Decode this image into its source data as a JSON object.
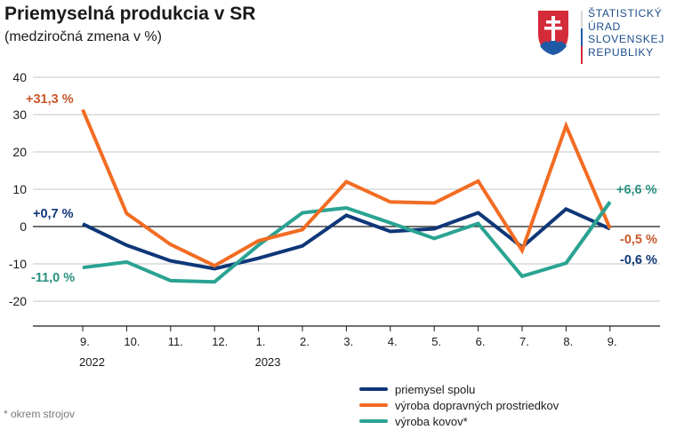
{
  "header": {
    "title": "Priemyselná produkcia v SR",
    "subtitle": "(medziročná zmena v %)"
  },
  "logo": {
    "lines": [
      "ŠTATISTICKÝ",
      "ÚRAD",
      "SLOVENSKEJ",
      "REPUBLIKY"
    ]
  },
  "footnote": "* okrem strojov",
  "chart_data": {
    "type": "line",
    "title": "Priemyselná produkcia v SR",
    "subtitle": "(medziročná zmena v %)",
    "xlabel": "",
    "ylabel": "",
    "ylim": [
      -27,
      40
    ],
    "yticks": [
      "40",
      "30",
      "20",
      "10",
      "0",
      "-10",
      "-20"
    ],
    "ytick_values": [
      40,
      30,
      20,
      10,
      0,
      -10,
      -20
    ],
    "grid": true,
    "legend_position": "bottom-center",
    "categories": [
      "9.",
      "10.",
      "11.",
      "12.",
      "1.",
      "2.",
      "3.",
      "4.",
      "5.",
      "6.",
      "7.",
      "8.",
      "9."
    ],
    "year_labels": [
      {
        "index": 0,
        "label": "2022"
      },
      {
        "index": 4,
        "label": "2023"
      }
    ],
    "series": [
      {
        "name": "priemysel spolu",
        "color": "#0f3778",
        "values": [
          0.7,
          -5.0,
          -9.2,
          -11.3,
          -8.5,
          -5.2,
          3.0,
          -1.3,
          -0.6,
          3.7,
          -5.5,
          4.7,
          -0.6
        ]
      },
      {
        "name": "výroba dopravných prostriedkov",
        "color": "#f26c22",
        "values": [
          31.3,
          3.5,
          -4.8,
          -10.5,
          -3.8,
          -0.8,
          12.0,
          6.6,
          6.3,
          12.2,
          -6.4,
          27.0,
          -0.5
        ]
      },
      {
        "name": "výroba kovov*",
        "color": "#2aa392",
        "values": [
          -11.0,
          -9.5,
          -14.5,
          -14.8,
          -5.0,
          3.7,
          5.0,
          1.0,
          -3.2,
          0.8,
          -13.3,
          -9.8,
          6.6
        ]
      }
    ],
    "annotations": [
      {
        "text": "+31,3 %",
        "series": 1,
        "index": 0,
        "color": "#c8582b"
      },
      {
        "text": "+0,7 %",
        "series": 0,
        "index": 0,
        "color": "#0f3778"
      },
      {
        "text": "-11,0 %",
        "series": 2,
        "index": 0,
        "color": "#2a8f80"
      },
      {
        "text": "+6,6 %",
        "series": 2,
        "index": 12,
        "color": "#2a8f80"
      },
      {
        "text": "-0,5 %",
        "series": 1,
        "index": 12,
        "color": "#c8582b"
      },
      {
        "text": "-0,6 %",
        "series": 0,
        "index": 12,
        "color": "#0f3778"
      }
    ]
  }
}
